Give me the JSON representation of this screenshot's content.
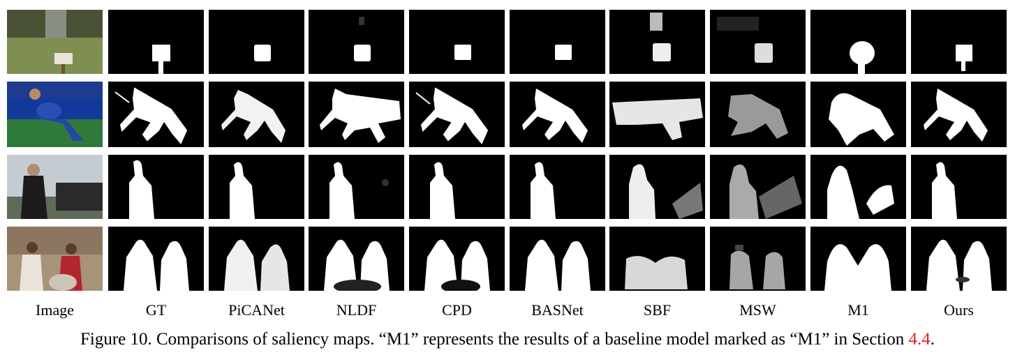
{
  "columns": [
    "Image",
    "GT",
    "PiCANet",
    "NLDF",
    "CPD",
    "BASNet",
    "SBF",
    "MSW",
    "M1",
    "Ours"
  ],
  "caption": {
    "prefix": "Figure 10. Comparisons of saliency maps. “M1” represents the results of a baseline model marked as “M1” in Section ",
    "ref": "4.4",
    "suffix": "."
  }
}
